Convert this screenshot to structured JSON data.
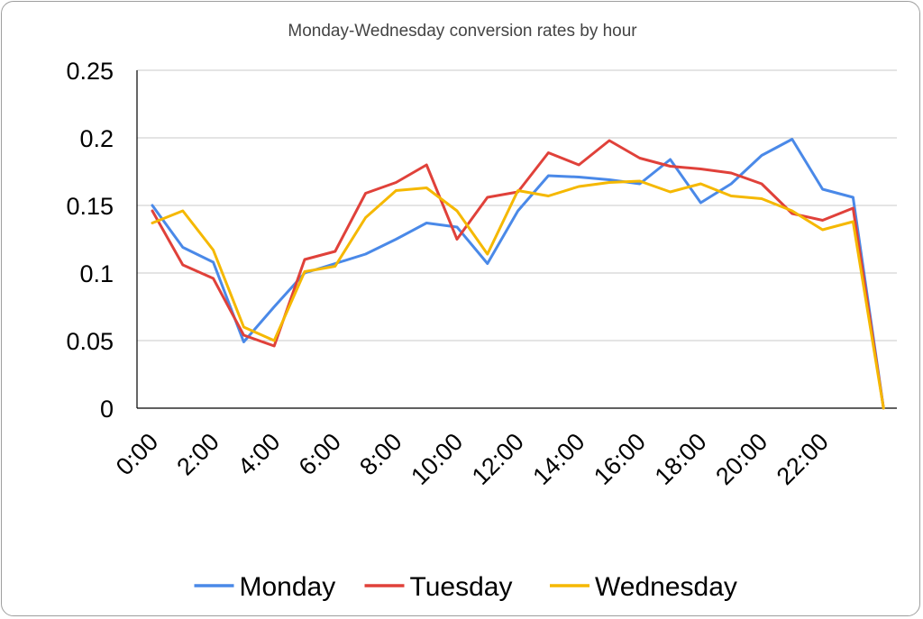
{
  "chart_data": {
    "type": "line",
    "title": "Monday-Wednesday conversion rates by hour",
    "xlabel": "",
    "ylabel": "",
    "ylim": [
      0,
      0.25
    ],
    "yticks": [
      "0",
      "0.05",
      "0.1",
      "0.15",
      "0.2",
      "0.25"
    ],
    "yticks_values": [
      0,
      0.05,
      0.1,
      0.15,
      0.2,
      0.25
    ],
    "x": [
      "0:00",
      "1:00",
      "2:00",
      "3:00",
      "4:00",
      "5:00",
      "6:00",
      "7:00",
      "8:00",
      "9:00",
      "10:00",
      "11:00",
      "12:00",
      "13:00",
      "14:00",
      "15:00",
      "16:00",
      "17:00",
      "18:00",
      "19:00",
      "20:00",
      "21:00",
      "22:00",
      "23:00",
      ""
    ],
    "xtick_labels": [
      "0:00",
      "2:00",
      "4:00",
      "6:00",
      "8:00",
      "10:00",
      "12:00",
      "14:00",
      "16:00",
      "18:00",
      "20:00",
      "22:00"
    ],
    "grid": true,
    "legend_position": "bottom",
    "series": [
      {
        "name": "Monday",
        "color": "#4a89e8",
        "values": [
          0.15,
          0.119,
          0.108,
          0.049,
          0.075,
          0.1,
          0.107,
          0.114,
          0.125,
          0.137,
          0.134,
          0.107,
          0.146,
          0.172,
          0.171,
          0.169,
          0.166,
          0.184,
          0.152,
          0.166,
          0.187,
          0.199,
          0.162,
          0.156,
          0.0
        ]
      },
      {
        "name": "Tuesday",
        "color": "#e0413a",
        "values": [
          0.146,
          0.106,
          0.096,
          0.054,
          0.046,
          0.11,
          0.116,
          0.159,
          0.167,
          0.18,
          0.125,
          0.156,
          0.16,
          0.189,
          0.18,
          0.198,
          0.185,
          0.179,
          0.177,
          0.174,
          0.166,
          0.144,
          0.139,
          0.148,
          0.0
        ]
      },
      {
        "name": "Wednesday",
        "color": "#f5b800",
        "values": [
          0.137,
          0.146,
          0.117,
          0.06,
          0.05,
          0.101,
          0.105,
          0.141,
          0.161,
          0.163,
          0.146,
          0.114,
          0.161,
          0.157,
          0.164,
          0.167,
          0.168,
          0.16,
          0.166,
          0.157,
          0.155,
          0.146,
          0.132,
          0.138,
          0.0
        ]
      }
    ]
  }
}
